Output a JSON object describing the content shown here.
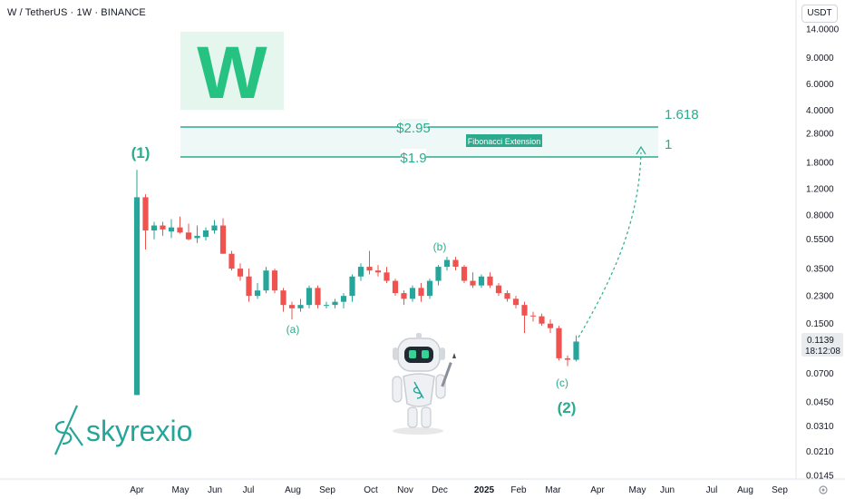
{
  "header": {
    "title": "W / TetherUS · 1W · BINANCE",
    "currency_badge": "USDT"
  },
  "logo": {
    "letter": "W"
  },
  "brand": {
    "name": "skyrexio"
  },
  "colors": {
    "up": "#26a69a",
    "down": "#ef5350",
    "accent": "#2bab8e",
    "zone_fill": "#eef8f6"
  },
  "price_axis": {
    "ticks": [
      {
        "label": "14.0000",
        "value": 14.0
      },
      {
        "label": "9.0000",
        "value": 9.0
      },
      {
        "label": "6.0000",
        "value": 6.0
      },
      {
        "label": "4.0000",
        "value": 4.0
      },
      {
        "label": "2.8000",
        "value": 2.8
      },
      {
        "label": "1.8000",
        "value": 1.8
      },
      {
        "label": "1.2000",
        "value": 1.2
      },
      {
        "label": "0.8000",
        "value": 0.8
      },
      {
        "label": "0.5500",
        "value": 0.55
      },
      {
        "label": "0.3500",
        "value": 0.35
      },
      {
        "label": "0.2300",
        "value": 0.23
      },
      {
        "label": "0.1500",
        "value": 0.15
      },
      {
        "label": "0.0700",
        "value": 0.07
      },
      {
        "label": "0.0450",
        "value": 0.045
      },
      {
        "label": "0.0310",
        "value": 0.031
      },
      {
        "label": "0.0210",
        "value": 0.021
      },
      {
        "label": "0.0145",
        "value": 0.0145
      }
    ],
    "current_price": "0.1139",
    "countdown": "18:12:08"
  },
  "time_axis": {
    "labels": [
      "Apr",
      "May",
      "Jun",
      "Jul",
      "Aug",
      "Sep",
      "Oct",
      "Nov",
      "Dec",
      "2025",
      "Feb",
      "Mar",
      "Apr",
      "May",
      "Jun",
      "Jul",
      "Aug",
      "Sep"
    ]
  },
  "annotations": {
    "wave_1": "(1)",
    "wave_a": "(a)",
    "wave_b": "(b)",
    "wave_c": "(c)",
    "wave_2": "(2)",
    "target_high": "$2.95",
    "target_low": "$1.9",
    "fib_high": "1.618",
    "fib_low": "1",
    "fib_label": "Fibonacci Extension"
  },
  "chart_data": {
    "type": "candlestick",
    "title": "W / TetherUS · 1W · BINANCE",
    "y_scale": "log",
    "ylim": [
      0.0145,
      14.0
    ],
    "x_range": [
      "Apr 2024",
      "Sep 2025"
    ],
    "series": [
      {
        "values": [
          {
            "o": 0.05,
            "h": 1.6,
            "l": 0.05,
            "c": 1.05
          },
          {
            "o": 1.05,
            "h": 1.1,
            "l": 0.47,
            "c": 0.63
          },
          {
            "o": 0.63,
            "h": 0.72,
            "l": 0.55,
            "c": 0.68
          },
          {
            "o": 0.68,
            "h": 0.72,
            "l": 0.58,
            "c": 0.64
          },
          {
            "o": 0.62,
            "h": 0.75,
            "l": 0.56,
            "c": 0.66
          },
          {
            "o": 0.66,
            "h": 0.78,
            "l": 0.6,
            "c": 0.61
          },
          {
            "o": 0.61,
            "h": 0.7,
            "l": 0.54,
            "c": 0.55
          },
          {
            "o": 0.56,
            "h": 0.68,
            "l": 0.52,
            "c": 0.58
          },
          {
            "o": 0.57,
            "h": 0.66,
            "l": 0.54,
            "c": 0.63
          },
          {
            "o": 0.63,
            "h": 0.74,
            "l": 0.6,
            "c": 0.68
          },
          {
            "o": 0.68,
            "h": 0.76,
            "l": 0.44,
            "c": 0.44
          },
          {
            "o": 0.44,
            "h": 0.46,
            "l": 0.34,
            "c": 0.35
          },
          {
            "o": 0.35,
            "h": 0.38,
            "l": 0.29,
            "c": 0.31
          },
          {
            "o": 0.31,
            "h": 0.35,
            "l": 0.21,
            "c": 0.23
          },
          {
            "o": 0.23,
            "h": 0.28,
            "l": 0.22,
            "c": 0.25
          },
          {
            "o": 0.25,
            "h": 0.36,
            "l": 0.24,
            "c": 0.34
          },
          {
            "o": 0.34,
            "h": 0.35,
            "l": 0.24,
            "c": 0.25
          },
          {
            "o": 0.25,
            "h": 0.26,
            "l": 0.18,
            "c": 0.2
          },
          {
            "o": 0.2,
            "h": 0.21,
            "l": 0.16,
            "c": 0.19
          },
          {
            "o": 0.19,
            "h": 0.22,
            "l": 0.18,
            "c": 0.2
          },
          {
            "o": 0.2,
            "h": 0.27,
            "l": 0.19,
            "c": 0.26
          },
          {
            "o": 0.26,
            "h": 0.27,
            "l": 0.19,
            "c": 0.2
          },
          {
            "o": 0.2,
            "h": 0.21,
            "l": 0.19,
            "c": 0.2
          },
          {
            "o": 0.2,
            "h": 0.22,
            "l": 0.19,
            "c": 0.21
          },
          {
            "o": 0.21,
            "h": 0.24,
            "l": 0.19,
            "c": 0.23
          },
          {
            "o": 0.23,
            "h": 0.32,
            "l": 0.21,
            "c": 0.31
          },
          {
            "o": 0.31,
            "h": 0.38,
            "l": 0.29,
            "c": 0.36
          },
          {
            "o": 0.36,
            "h": 0.46,
            "l": 0.32,
            "c": 0.34
          },
          {
            "o": 0.34,
            "h": 0.37,
            "l": 0.31,
            "c": 0.33
          },
          {
            "o": 0.33,
            "h": 0.36,
            "l": 0.28,
            "c": 0.29
          },
          {
            "o": 0.29,
            "h": 0.3,
            "l": 0.23,
            "c": 0.24
          },
          {
            "o": 0.24,
            "h": 0.25,
            "l": 0.2,
            "c": 0.22
          },
          {
            "o": 0.22,
            "h": 0.27,
            "l": 0.21,
            "c": 0.26
          },
          {
            "o": 0.26,
            "h": 0.28,
            "l": 0.21,
            "c": 0.23
          },
          {
            "o": 0.23,
            "h": 0.3,
            "l": 0.22,
            "c": 0.29
          },
          {
            "o": 0.29,
            "h": 0.37,
            "l": 0.27,
            "c": 0.36
          },
          {
            "o": 0.36,
            "h": 0.42,
            "l": 0.34,
            "c": 0.4
          },
          {
            "o": 0.4,
            "h": 0.42,
            "l": 0.34,
            "c": 0.36
          },
          {
            "o": 0.36,
            "h": 0.37,
            "l": 0.28,
            "c": 0.29
          },
          {
            "o": 0.29,
            "h": 0.33,
            "l": 0.26,
            "c": 0.27
          },
          {
            "o": 0.27,
            "h": 0.32,
            "l": 0.26,
            "c": 0.31
          },
          {
            "o": 0.31,
            "h": 0.33,
            "l": 0.26,
            "c": 0.27
          },
          {
            "o": 0.27,
            "h": 0.28,
            "l": 0.23,
            "c": 0.24
          },
          {
            "o": 0.24,
            "h": 0.25,
            "l": 0.21,
            "c": 0.22
          },
          {
            "o": 0.22,
            "h": 0.23,
            "l": 0.19,
            "c": 0.2
          },
          {
            "o": 0.2,
            "h": 0.21,
            "l": 0.13,
            "c": 0.17
          },
          {
            "o": 0.17,
            "h": 0.18,
            "l": 0.155,
            "c": 0.168
          },
          {
            "o": 0.168,
            "h": 0.175,
            "l": 0.145,
            "c": 0.15
          },
          {
            "o": 0.15,
            "h": 0.16,
            "l": 0.13,
            "c": 0.14
          },
          {
            "o": 0.14,
            "h": 0.145,
            "l": 0.085,
            "c": 0.088
          },
          {
            "o": 0.088,
            "h": 0.092,
            "l": 0.078,
            "c": 0.086
          },
          {
            "o": 0.086,
            "h": 0.125,
            "l": 0.084,
            "c": 0.1139
          }
        ]
      }
    ],
    "fibonacci_extension": [
      {
        "level": "1.618",
        "price": 2.95,
        "label": "$2.95"
      },
      {
        "level": "1",
        "price": 1.9,
        "label": "$1.9"
      }
    ],
    "wave_labels": [
      "(1)",
      "(a)",
      "(b)",
      "(c)",
      "(2)"
    ],
    "grid": false
  }
}
